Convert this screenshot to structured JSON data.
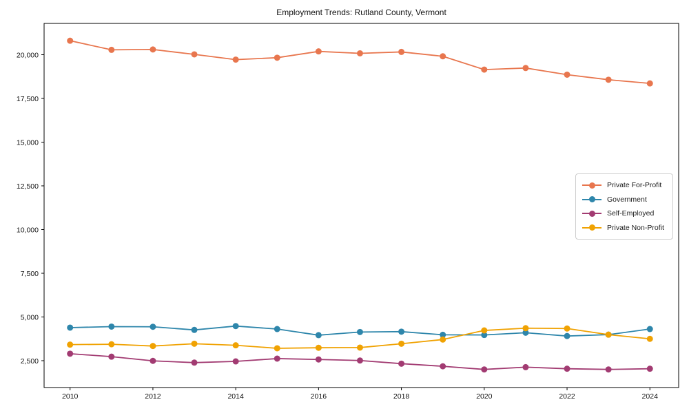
{
  "figure": {
    "title": "Employment Trends: Rutland County, Vermont",
    "background_color": "#ffffff",
    "frame_color": "#000000",
    "legend_border_color": "#cccccc"
  },
  "chart_data": {
    "type": "line",
    "title": "Employment Trends: Rutland County, Vermont",
    "xlabel": "",
    "ylabel": "",
    "grid": false,
    "legend_position": "right",
    "x": [
      2010,
      2011,
      2012,
      2013,
      2014,
      2015,
      2016,
      2017,
      2018,
      2019,
      2020,
      2021,
      2022,
      2023,
      2024
    ],
    "x_ticks": [
      2010,
      2012,
      2014,
      2016,
      2018,
      2020,
      2022,
      2024
    ],
    "x_tick_labels": [
      "2010",
      "2012",
      "2014",
      "2016",
      "2018",
      "2020",
      "2022",
      "2024"
    ],
    "y_ticks": [
      2500,
      5000,
      7500,
      10000,
      12500,
      15000,
      17500,
      20000
    ],
    "y_tick_labels": [
      "2,500",
      "5,000",
      "7,500",
      "10,000",
      "12,500",
      "15,000",
      "17,500",
      "20,000"
    ],
    "ylim": [
      1000,
      21700
    ],
    "series": [
      {
        "name": "Private For-Profit",
        "color": "#e8764e",
        "values": [
          20800,
          20280,
          20300,
          20020,
          19720,
          19830,
          20190,
          20080,
          20160,
          19910,
          19150,
          19240,
          18860,
          18570,
          18360
        ]
      },
      {
        "name": "Government",
        "color": "#2e86ab",
        "values": [
          4390,
          4450,
          4440,
          4260,
          4480,
          4310,
          3960,
          4140,
          4160,
          3980,
          3970,
          4100,
          3910,
          3990,
          4310
        ]
      },
      {
        "name": "Self-Employed",
        "color": "#a23b72",
        "values": [
          2900,
          2730,
          2490,
          2390,
          2460,
          2620,
          2570,
          2510,
          2330,
          2180,
          2000,
          2130,
          2040,
          2000,
          2040
        ]
      },
      {
        "name": "Private Non-Profit",
        "color": "#f0a202",
        "values": [
          3420,
          3440,
          3340,
          3470,
          3380,
          3210,
          3240,
          3250,
          3470,
          3710,
          4230,
          4360,
          4340,
          3990,
          3750
        ]
      }
    ]
  }
}
